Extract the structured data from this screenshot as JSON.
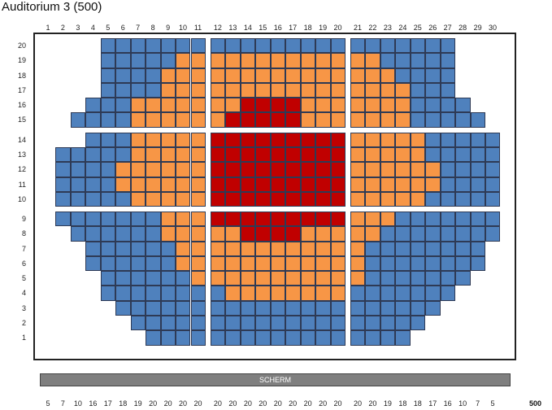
{
  "title": "Auditorium 3 (500)",
  "screen_label": "SCHERM",
  "total": "500",
  "colors": {
    "1": "#4f81bd",
    "2": "#f79646",
    "3": "#c00000"
  },
  "legend_note": "",
  "columns": [
    "1",
    "2",
    "3",
    "4",
    "5",
    "6",
    "7",
    "8",
    "9",
    "10",
    "11",
    "12",
    "13",
    "14",
    "15",
    "16",
    "17",
    "18",
    "19",
    "20",
    "21",
    "22",
    "23",
    "24",
    "25",
    "26",
    "27",
    "28",
    "29",
    "30"
  ],
  "rows": [
    {
      "label": "20",
      "seats": "....1111111.1111111111.1111111....",
      "comment": ""
    },
    {
      "label": "19",
      "seats": "....1111122.2222222222.2211111....",
      "comment": ""
    },
    {
      "label": "18",
      "seats": "....1111222.2222222222.2221111....",
      "comment": ""
    },
    {
      "label": "17",
      "seats": "....1111222.2222222222.2222111....",
      "comment": ""
    },
    {
      "label": "16",
      "seats": "....11122222.2233332222.22221111....",
      "comment": ""
    },
    {
      "label": "15",
      "seats": "...111122222.2333332222.222211111...",
      "comment": ""
    },
    {
      "label": "14",
      "seats": "..11122222.3333333333.2222211111..",
      "comment": ""
    },
    {
      "label": "13",
      "seats": ".1111122222.3333333333.22222111111.",
      "comment": ""
    },
    {
      "label": "12",
      "seats": ".1111222222.3333333333.22222211111.",
      "comment": ""
    },
    {
      "label": "11",
      "seats": ".1111222222.3333333333.22222211111.",
      "comment": ""
    },
    {
      "label": "10",
      "seats": ".1111122222.3333333333.22222111111.",
      "comment": ""
    },
    {
      "label": "9",
      "seats": ".1111111222.3333333333.22211111111.",
      "comment": ""
    },
    {
      "label": "8",
      "seats": "..111111222.2233332222.2211111111..",
      "comment": ""
    },
    {
      "label": "7",
      "seats": "...11111122.2222222222.211111111...",
      "comment": ""
    },
    {
      "label": "6",
      "seats": "...11111122.2222222222.211111111...",
      "comment": ""
    },
    {
      "label": "5",
      "seats": "....1111112.2222222222.21111111....",
      "comment": ""
    },
    {
      "label": "4",
      "seats": "....1111111.1222222221.1111111....",
      "comment": ""
    },
    {
      "label": "3",
      "seats": ".....111111.1111111111.111111.....",
      "comment": ""
    },
    {
      "label": "2",
      "seats": "......11111.1111111111.11111......",
      "comment": ""
    },
    {
      "label": "1",
      "seats": ".......1111.1111111111.1111.......",
      "comment": ""
    }
  ],
  "column_counts": [
    "5",
    "7",
    "10",
    "16",
    "17",
    "18",
    "19",
    "20",
    "20",
    "20",
    "20",
    "20",
    "20",
    "20",
    "20",
    "20",
    "20",
    "20",
    "20",
    "20",
    "20",
    "20",
    "19",
    "18",
    "18",
    "17",
    "16",
    "10",
    "7",
    "5"
  ]
}
